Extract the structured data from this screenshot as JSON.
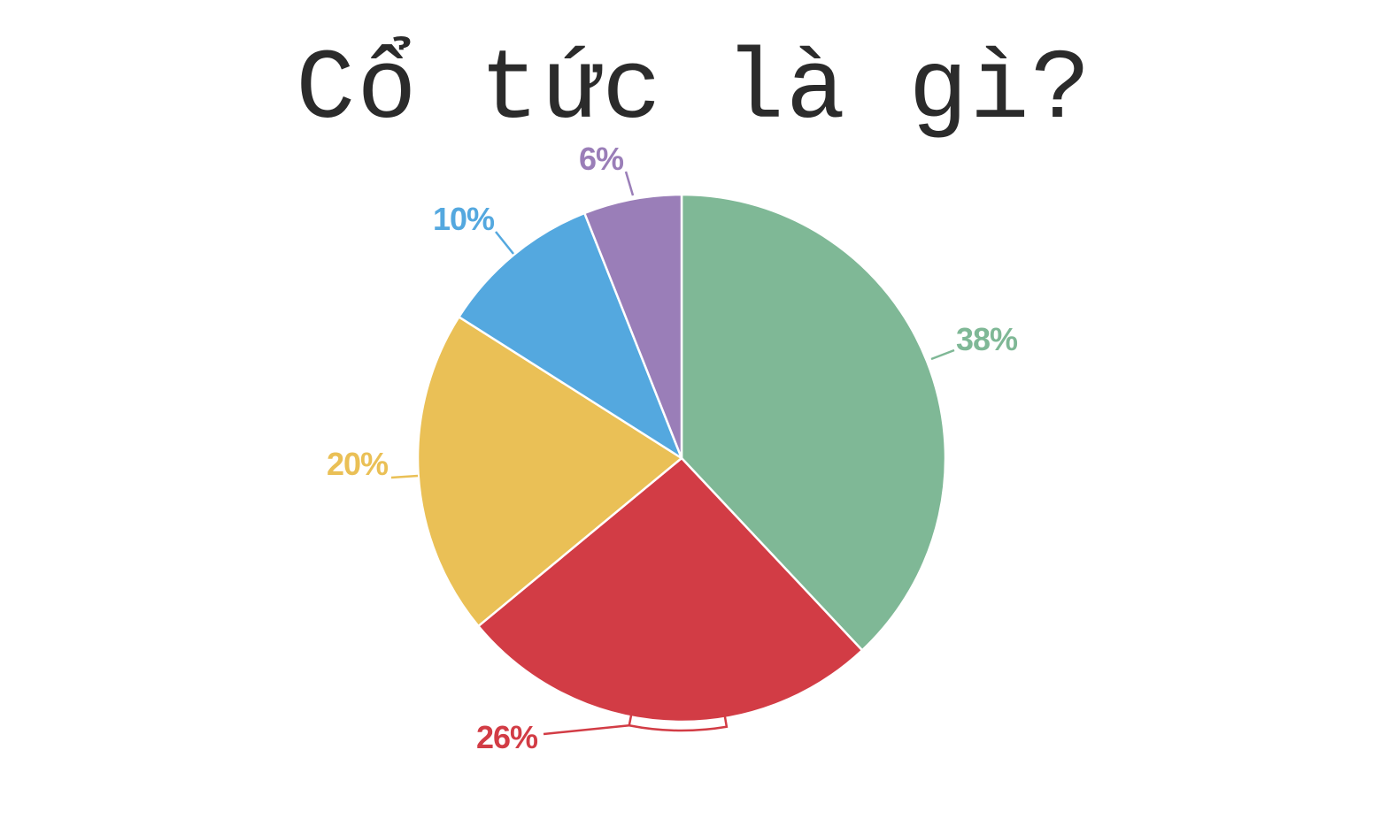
{
  "chart_data": {
    "type": "pie",
    "title": "Cổ tức là gì?",
    "slices": [
      {
        "value": 38,
        "label": "38%",
        "color": "#7fb896"
      },
      {
        "value": 26,
        "label": "26%",
        "color": "#d23c45"
      },
      {
        "value": 20,
        "label": "20%",
        "color": "#eac056"
      },
      {
        "value": 10,
        "label": "10%",
        "color": "#54a8df"
      },
      {
        "value": 6,
        "label": "6%",
        "color": "#9a7eb8"
      }
    ],
    "start_angle": "12 o'clock",
    "direction": "clockwise",
    "legend": "none"
  }
}
